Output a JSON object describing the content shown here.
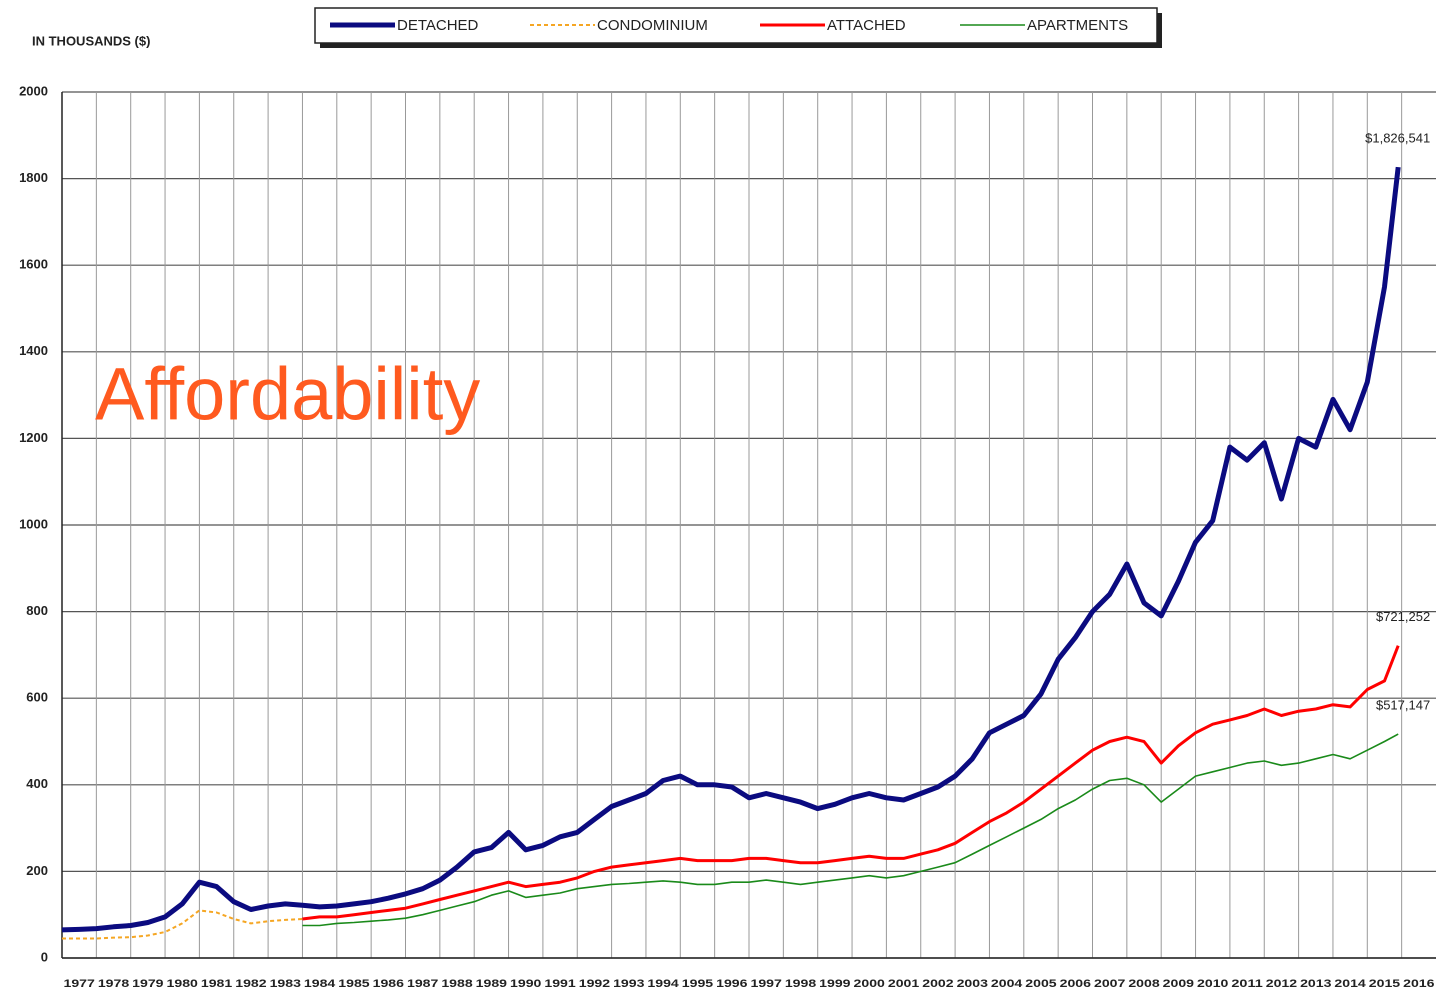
{
  "chart_data": {
    "type": "line",
    "axis_label": "IN THOUSANDS ($)",
    "overlay_text": "Affordability",
    "legend": "top",
    "grid": true,
    "x": [
      1977.0,
      1977.5,
      1978.0,
      1978.5,
      1979.0,
      1979.5,
      1980.0,
      1980.5,
      1981.0,
      1981.5,
      1982.0,
      1982.5,
      1983.0,
      1983.5,
      1984.0,
      1984.5,
      1985.0,
      1985.5,
      1986.0,
      1986.5,
      1987.0,
      1987.5,
      1988.0,
      1988.5,
      1989.0,
      1989.5,
      1990.0,
      1990.5,
      1991.0,
      1991.5,
      1992.0,
      1992.5,
      1993.0,
      1993.5,
      1994.0,
      1994.5,
      1995.0,
      1995.5,
      1996.0,
      1996.5,
      1997.0,
      1997.5,
      1998.0,
      1998.5,
      1999.0,
      1999.5,
      2000.0,
      2000.5,
      2001.0,
      2001.5,
      2002.0,
      2002.5,
      2003.0,
      2003.5,
      2004.0,
      2004.5,
      2005.0,
      2005.5,
      2006.0,
      2006.5,
      2007.0,
      2007.5,
      2008.0,
      2008.5,
      2009.0,
      2009.5,
      2010.0,
      2010.5,
      2011.0,
      2011.5,
      2012.0,
      2012.5,
      2013.0,
      2013.5,
      2014.0,
      2014.5,
      2015.0,
      2015.5,
      2015.9
    ],
    "series": [
      {
        "name": "DETACHED",
        "color": "#0b0b80",
        "width": 5,
        "dashed": false,
        "end_label": "$1,826,541",
        "values": [
          65,
          66,
          68,
          72,
          75,
          82,
          95,
          125,
          175,
          165,
          130,
          112,
          120,
          125,
          122,
          118,
          120,
          125,
          130,
          138,
          148,
          160,
          180,
          210,
          245,
          255,
          290,
          250,
          260,
          280,
          290,
          320,
          350,
          365,
          380,
          410,
          420,
          400,
          400,
          395,
          370,
          380,
          370,
          360,
          345,
          355,
          370,
          380,
          370,
          365,
          380,
          395,
          420,
          460,
          520,
          540,
          560,
          610,
          690,
          740,
          800,
          840,
          910,
          820,
          790,
          870,
          960,
          1010,
          1180,
          1150,
          1190,
          1060,
          1200,
          1180,
          1290,
          1220,
          1330,
          1550,
          1826.541
        ]
      },
      {
        "name": "CONDOMINIUM",
        "color": "#f5a623",
        "width": 2,
        "dashed": true,
        "values": [
          45,
          45,
          45,
          47,
          48,
          52,
          60,
          80,
          110,
          105,
          90,
          80,
          85,
          88,
          90,
          null,
          null,
          null,
          null,
          null,
          null,
          null,
          null,
          null,
          null,
          null,
          null,
          null,
          null,
          null,
          null,
          null,
          null,
          null,
          null,
          null,
          null,
          null,
          null,
          null,
          null,
          null,
          null,
          null,
          null,
          null,
          null,
          null,
          null,
          null,
          null,
          null,
          null,
          null,
          null,
          null,
          null,
          null,
          null,
          null,
          null,
          null,
          null,
          null,
          null,
          null,
          null,
          null,
          null,
          null,
          null,
          null,
          null,
          null,
          null,
          null,
          null,
          null,
          null
        ]
      },
      {
        "name": "ATTACHED",
        "color": "#ff0000",
        "width": 3,
        "dashed": false,
        "end_label": "$721,252",
        "values": [
          null,
          null,
          null,
          null,
          null,
          null,
          null,
          null,
          null,
          null,
          null,
          null,
          null,
          null,
          90,
          95,
          95,
          100,
          105,
          110,
          115,
          125,
          135,
          145,
          155,
          165,
          175,
          165,
          170,
          175,
          185,
          200,
          210,
          215,
          220,
          225,
          230,
          225,
          225,
          225,
          230,
          230,
          225,
          220,
          220,
          225,
          230,
          235,
          230,
          230,
          240,
          250,
          265,
          290,
          315,
          335,
          360,
          390,
          420,
          450,
          480,
          500,
          510,
          500,
          450,
          490,
          520,
          540,
          550,
          560,
          575,
          560,
          570,
          575,
          585,
          580,
          620,
          640,
          721.252
        ]
      },
      {
        "name": "APARTMENTS",
        "color": "#1a8a1a",
        "width": 1.6,
        "dashed": false,
        "end_label": "$517,147",
        "values": [
          null,
          null,
          null,
          null,
          null,
          null,
          null,
          null,
          null,
          null,
          null,
          null,
          null,
          null,
          75,
          75,
          80,
          82,
          85,
          88,
          92,
          100,
          110,
          120,
          130,
          145,
          155,
          140,
          145,
          150,
          160,
          165,
          170,
          172,
          175,
          178,
          175,
          170,
          170,
          175,
          175,
          180,
          175,
          170,
          175,
          180,
          185,
          190,
          185,
          190,
          200,
          210,
          220,
          240,
          260,
          280,
          300,
          320,
          345,
          365,
          390,
          410,
          415,
          400,
          360,
          390,
          420,
          430,
          440,
          450,
          455,
          445,
          450,
          460,
          470,
          460,
          480,
          500,
          517.147
        ]
      }
    ],
    "xlim": [
      1977,
      2017
    ],
    "xticks": [
      1977,
      1978,
      1979,
      1980,
      1981,
      1982,
      1983,
      1984,
      1985,
      1986,
      1987,
      1988,
      1989,
      1990,
      1991,
      1992,
      1993,
      1994,
      1995,
      1996,
      1997,
      1998,
      1999,
      2000,
      2001,
      2002,
      2003,
      2004,
      2005,
      2006,
      2007,
      2008,
      2009,
      2010,
      2011,
      2012,
      2013,
      2014,
      2015,
      2016
    ],
    "ylim": [
      0,
      2000
    ],
    "yticks": [
      0,
      200,
      400,
      600,
      800,
      1000,
      1200,
      1400,
      1600,
      1800,
      2000
    ]
  }
}
